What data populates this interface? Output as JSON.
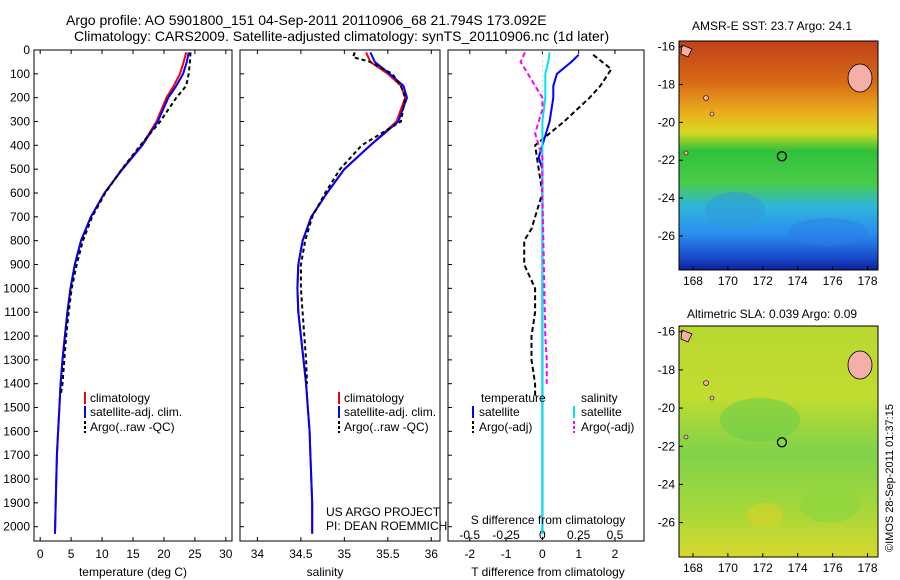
{
  "header": {
    "line1": "Argo profile: AO 5901800_151 04-Sep-2011 20110906_68 21.794S 173.092E",
    "line2": "Climatology: CARS2009. Satellite-adjusted climatology: synTS_20110906.nc (1d later)"
  },
  "credit": {
    "line1": "US ARGO PROJECT",
    "line2": "PI: DEAN ROEMMICH"
  },
  "footer_stamp": "©IMOS 28-Sep-2011 01:37:15",
  "colors": {
    "climatology": "#ff0000",
    "satellite": "#0000ff",
    "argo": "#000000",
    "salinity_satellite": "#00e5e5",
    "salinity_argo": "#ff00ff"
  },
  "chart_data": [
    {
      "type": "line",
      "name": "temperature",
      "xlabel": "temperature (deg C)",
      "ylabel": "",
      "xlim": [
        -1,
        31
      ],
      "ylim": [
        2060,
        0
      ],
      "xticks": [
        0,
        5,
        10,
        15,
        20,
        25,
        30
      ],
      "yticks": [
        0,
        100,
        200,
        300,
        400,
        500,
        600,
        700,
        800,
        900,
        1000,
        1100,
        1200,
        1300,
        1400,
        1500,
        1600,
        1700,
        1800,
        1900,
        2000
      ],
      "legend": [
        "climatology",
        "satellite-adj. clim.",
        "Argo(..raw -QC)"
      ],
      "legend_position": "lower-middle",
      "series": [
        {
          "name": "climatology",
          "points": [
            [
              23.6,
              10
            ],
            [
              23.2,
              50
            ],
            [
              22.6,
              100
            ],
            [
              21.6,
              150
            ],
            [
              20.4,
              200
            ],
            [
              18.8,
              300
            ],
            [
              16.4,
              400
            ],
            [
              13.2,
              500
            ],
            [
              10.4,
              600
            ],
            [
              8.2,
              700
            ],
            [
              6.6,
              800
            ],
            [
              5.6,
              900
            ],
            [
              4.9,
              1000
            ],
            [
              4.4,
              1100
            ],
            [
              4.0,
              1200
            ],
            [
              3.6,
              1300
            ],
            [
              3.3,
              1400
            ],
            [
              3.1,
              1500
            ],
            [
              2.9,
              1600
            ],
            [
              2.7,
              1700
            ],
            [
              2.6,
              1800
            ],
            [
              2.5,
              1900
            ],
            [
              2.4,
              2030
            ]
          ]
        },
        {
          "name": "satellite-adj. clim.",
          "points": [
            [
              24.0,
              10
            ],
            [
              23.7,
              50
            ],
            [
              23.1,
              100
            ],
            [
              22.0,
              150
            ],
            [
              20.7,
              200
            ],
            [
              19.0,
              300
            ],
            [
              16.5,
              400
            ],
            [
              13.3,
              500
            ],
            [
              10.4,
              600
            ],
            [
              8.2,
              700
            ],
            [
              6.6,
              800
            ],
            [
              5.6,
              900
            ],
            [
              4.9,
              1000
            ],
            [
              4.4,
              1100
            ],
            [
              4.0,
              1200
            ],
            [
              3.6,
              1300
            ],
            [
              3.3,
              1400
            ],
            [
              3.1,
              1500
            ],
            [
              2.9,
              1600
            ],
            [
              2.7,
              1700
            ],
            [
              2.6,
              1800
            ],
            [
              2.5,
              1900
            ],
            [
              2.4,
              2030
            ]
          ]
        },
        {
          "name": "Argo(..raw -QC)",
          "points": [
            [
              24.3,
              10
            ],
            [
              24.2,
              50
            ],
            [
              24.0,
              100
            ],
            [
              23.6,
              150
            ],
            [
              22.0,
              200
            ],
            [
              19.4,
              300
            ],
            [
              16.2,
              400
            ],
            [
              13.2,
              500
            ],
            [
              10.5,
              600
            ],
            [
              8.4,
              700
            ],
            [
              6.9,
              800
            ],
            [
              5.9,
              900
            ],
            [
              5.1,
              1000
            ],
            [
              4.6,
              1100
            ],
            [
              4.2,
              1200
            ],
            [
              3.9,
              1300
            ],
            [
              3.6,
              1400
            ],
            [
              3.3,
              1450
            ]
          ]
        }
      ]
    },
    {
      "type": "line",
      "name": "salinity",
      "xlabel": "salinity",
      "ylabel": "",
      "xlim": [
        33.8,
        36.1
      ],
      "ylim": [
        2060,
        0
      ],
      "xticks": [
        34,
        34.5,
        35,
        35.5,
        36
      ],
      "legend": [
        "climatology",
        "satellite-adj. clim.",
        "Argo(..raw -QC)"
      ],
      "legend_position": "lower-middle",
      "series": [
        {
          "name": "climatology",
          "points": [
            [
              35.25,
              10
            ],
            [
              35.3,
              50
            ],
            [
              35.5,
              100
            ],
            [
              35.65,
              150
            ],
            [
              35.7,
              200
            ],
            [
              35.6,
              300
            ],
            [
              35.3,
              400
            ],
            [
              35.0,
              500
            ],
            [
              34.8,
              600
            ],
            [
              34.62,
              700
            ],
            [
              34.52,
              800
            ],
            [
              34.47,
              900
            ],
            [
              34.46,
              1000
            ],
            [
              34.47,
              1100
            ],
            [
              34.5,
              1200
            ],
            [
              34.53,
              1300
            ],
            [
              34.56,
              1400
            ],
            [
              34.58,
              1500
            ],
            [
              34.6,
              1600
            ],
            [
              34.61,
              1700
            ],
            [
              34.62,
              1800
            ],
            [
              34.63,
              1900
            ],
            [
              34.63,
              2030
            ]
          ]
        },
        {
          "name": "satellite-adj. clim.",
          "points": [
            [
              35.3,
              10
            ],
            [
              35.35,
              50
            ],
            [
              35.52,
              100
            ],
            [
              35.68,
              150
            ],
            [
              35.72,
              200
            ],
            [
              35.62,
              300
            ],
            [
              35.3,
              400
            ],
            [
              35.0,
              500
            ],
            [
              34.8,
              600
            ],
            [
              34.62,
              700
            ],
            [
              34.52,
              800
            ],
            [
              34.47,
              900
            ],
            [
              34.46,
              1000
            ],
            [
              34.47,
              1100
            ],
            [
              34.5,
              1200
            ],
            [
              34.53,
              1300
            ],
            [
              34.56,
              1400
            ],
            [
              34.58,
              1500
            ],
            [
              34.6,
              1600
            ],
            [
              34.61,
              1700
            ],
            [
              34.62,
              1800
            ],
            [
              34.63,
              1900
            ],
            [
              34.63,
              2030
            ]
          ]
        },
        {
          "name": "Argo(..raw -QC)",
          "points": [
            [
              35.12,
              10
            ],
            [
              35.1,
              30
            ],
            [
              35.3,
              50
            ],
            [
              35.55,
              100
            ],
            [
              35.65,
              150
            ],
            [
              35.7,
              200
            ],
            [
              35.65,
              300
            ],
            [
              35.2,
              400
            ],
            [
              34.95,
              500
            ],
            [
              34.78,
              600
            ],
            [
              34.63,
              700
            ],
            [
              34.55,
              800
            ],
            [
              34.5,
              900
            ],
            [
              34.5,
              1000
            ],
            [
              34.52,
              1100
            ],
            [
              34.54,
              1200
            ],
            [
              34.56,
              1300
            ],
            [
              34.57,
              1400
            ]
          ]
        }
      ]
    },
    {
      "type": "line",
      "name": "differences",
      "xlabel": "T difference from climatology",
      "xlabel_top": "S difference from climatology",
      "ylabel": "",
      "xlim": [
        -2.6,
        2.8
      ],
      "ylim": [
        2060,
        0
      ],
      "xticks": [
        -2,
        -1,
        0,
        1,
        2
      ],
      "xticks_s": [
        -0.5,
        -0.25,
        0,
        0.25,
        0.5
      ],
      "legend": {
        "temperature": "temperature",
        "salinity": "salinity",
        "items": [
          "satellite",
          "Argo(-adj)",
          "satellite",
          "Argo(-adj)"
        ]
      },
      "legend_position": "lower-middle",
      "series": [
        {
          "name": "T satellite",
          "points": [
            [
              1.0,
              20
            ],
            [
              0.8,
              50
            ],
            [
              0.4,
              100
            ],
            [
              0.3,
              150
            ],
            [
              0.3,
              200
            ],
            [
              0.2,
              300
            ],
            [
              0.0,
              400
            ],
            [
              -0.1,
              450
            ],
            [
              0.0,
              500
            ],
            [
              0.0,
              600
            ],
            [
              0.0,
              800
            ],
            [
              0.0,
              1000
            ],
            [
              0.0,
              1500
            ],
            [
              0.0,
              2030
            ]
          ]
        },
        {
          "name": "T Argo(-adj)",
          "points": [
            [
              1.4,
              20
            ],
            [
              1.9,
              80
            ],
            [
              1.6,
              150
            ],
            [
              1.3,
              200
            ],
            [
              0.6,
              300
            ],
            [
              -0.2,
              400
            ],
            [
              -0.1,
              500
            ],
            [
              0.0,
              600
            ],
            [
              -0.3,
              750
            ],
            [
              -0.5,
              800
            ],
            [
              -0.5,
              900
            ],
            [
              -0.2,
              1000
            ],
            [
              -0.2,
              1100
            ],
            [
              -0.3,
              1200
            ],
            [
              -0.3,
              1300
            ],
            [
              -0.2,
              1400
            ],
            [
              -0.2,
              1450
            ]
          ]
        },
        {
          "name": "S satellite",
          "points": [
            [
              0.05,
              10
            ],
            [
              0.04,
              50
            ],
            [
              0.02,
              100
            ],
            [
              0.02,
              200
            ],
            [
              0.0,
              300
            ],
            [
              0.0,
              400
            ],
            [
              0.0,
              500
            ],
            [
              0.0,
              600
            ],
            [
              0.0,
              800
            ],
            [
              0.0,
              1000
            ],
            [
              0.0,
              1500
            ],
            [
              0.0,
              2030
            ]
          ]
        },
        {
          "name": "S Argo(-adj)",
          "points": [
            [
              -0.12,
              10
            ],
            [
              -0.15,
              50
            ],
            [
              -0.1,
              100
            ],
            [
              -0.05,
              150
            ],
            [
              0.0,
              200
            ],
            [
              0.0,
              250
            ],
            [
              -0.05,
              350
            ],
            [
              0.0,
              450
            ],
            [
              0.0,
              600
            ],
            [
              0.02,
              1200
            ],
            [
              0.03,
              1300
            ],
            [
              0.03,
              1400
            ]
          ]
        }
      ]
    },
    {
      "type": "heatmap",
      "name": "AMSR-E SST",
      "title": "AMSR-E SST: 23.7  Argo: 24.1",
      "xlim": [
        167.2,
        178.6
      ],
      "ylim": [
        -27.8,
        -15.7
      ],
      "xticks": [
        168,
        170,
        172,
        174,
        176,
        178
      ],
      "yticks": [
        -16,
        -18,
        -20,
        -22,
        -24,
        -26
      ],
      "marker": {
        "lon": 173.092,
        "lat": -21.794
      }
    },
    {
      "type": "heatmap",
      "name": "Altimetric SLA",
      "title": "Altimetric SLA: 0.039  Argo: 0.09",
      "xlim": [
        167.2,
        178.6
      ],
      "ylim": [
        -27.8,
        -15.7
      ],
      "xticks": [
        168,
        170,
        172,
        174,
        176,
        178
      ],
      "yticks": [
        -16,
        -18,
        -20,
        -22,
        -24,
        -26
      ],
      "marker": {
        "lon": 173.092,
        "lat": -21.794
      }
    }
  ]
}
